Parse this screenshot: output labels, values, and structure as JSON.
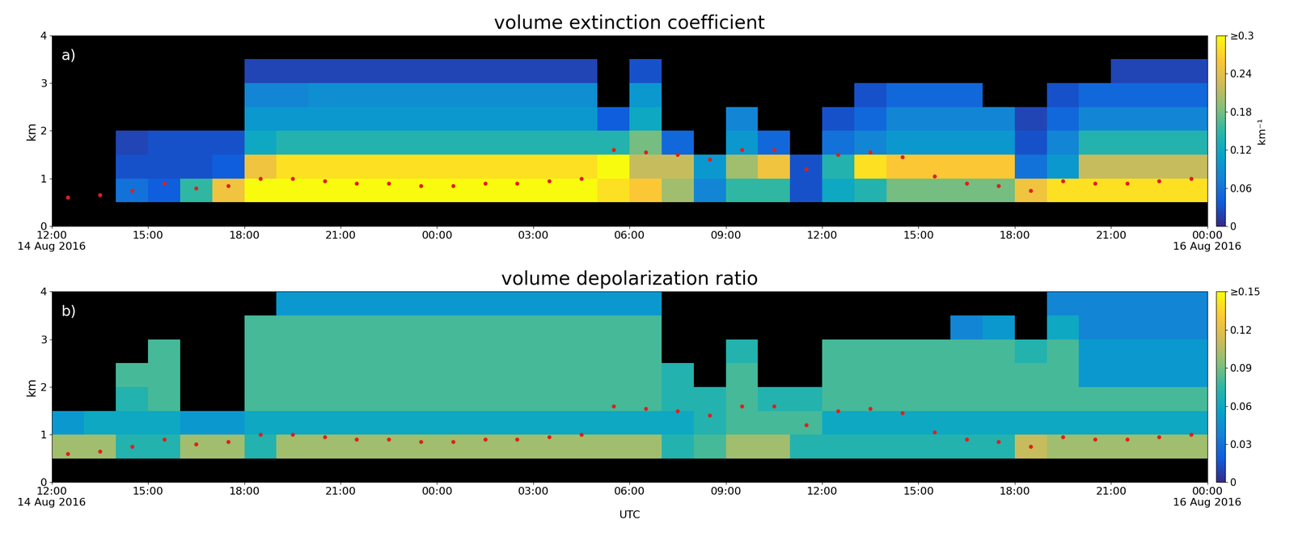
{
  "chart_data": [
    {
      "type": "heatmap",
      "title": "volume extinction coefficient",
      "panel_label": "a)",
      "y_label": "km",
      "x_label": null,
      "grid": false,
      "xlim": [
        0,
        36
      ],
      "ylim": [
        0,
        4
      ],
      "xticks": [
        {
          "value": 0,
          "label": "12:00\n14 Aug 2016"
        },
        {
          "value": 3,
          "label": "15:00"
        },
        {
          "value": 6,
          "label": "18:00"
        },
        {
          "value": 9,
          "label": "21:00"
        },
        {
          "value": 12,
          "label": "00:00"
        },
        {
          "value": 15,
          "label": "03:00"
        },
        {
          "value": 18,
          "label": "06:00"
        },
        {
          "value": 21,
          "label": "09:00"
        },
        {
          "value": 24,
          "label": "12:00"
        },
        {
          "value": 27,
          "label": "15:00"
        },
        {
          "value": 30,
          "label": "18:00"
        },
        {
          "value": 33,
          "label": "21:00"
        },
        {
          "value": 36,
          "label": "00:00\n16 Aug 2016"
        }
      ],
      "yticks": [
        0,
        1,
        2,
        3,
        4
      ],
      "x_edges": [
        0,
        1,
        2,
        3,
        4,
        5,
        6,
        7,
        8,
        9,
        10,
        11,
        12,
        13,
        14,
        15,
        16,
        17,
        18,
        19,
        20,
        21,
        22,
        23,
        24,
        25,
        26,
        27,
        28,
        29,
        30,
        31,
        32,
        33,
        34,
        35,
        36
      ],
      "y_edges": [
        0.5,
        1,
        1.5,
        2,
        2.5,
        3,
        3.5,
        4
      ],
      "cells": [
        [
          null,
          null,
          0.06,
          0.04,
          0.15,
          0.25,
          0.3,
          0.3,
          0.3,
          0.3,
          0.3,
          0.3,
          0.3,
          0.3,
          0.3,
          0.3,
          0.3,
          0.28,
          0.26,
          0.2,
          0.08,
          0.15,
          0.15,
          0.03,
          0.12,
          0.14,
          0.18,
          0.18,
          0.18,
          0.18,
          0.25,
          0.28,
          0.28,
          0.28,
          0.28,
          0.28
        ],
        [
          null,
          null,
          0.03,
          0.03,
          0.03,
          0.04,
          0.25,
          0.28,
          0.28,
          0.28,
          0.28,
          0.28,
          0.28,
          0.28,
          0.28,
          0.28,
          0.28,
          0.3,
          0.22,
          0.22,
          0.1,
          0.2,
          0.25,
          0.03,
          0.14,
          0.28,
          0.26,
          0.26,
          0.26,
          0.26,
          0.06,
          0.1,
          0.22,
          0.22,
          0.22,
          0.22
        ],
        [
          null,
          null,
          0.02,
          0.03,
          0.03,
          0.03,
          0.12,
          0.14,
          0.14,
          0.14,
          0.14,
          0.14,
          0.14,
          0.14,
          0.14,
          0.14,
          0.14,
          0.14,
          0.18,
          0.05,
          null,
          0.1,
          0.05,
          null,
          0.06,
          0.08,
          0.1,
          0.1,
          0.1,
          0.1,
          0.03,
          0.08,
          0.14,
          0.14,
          0.14,
          0.14
        ],
        [
          null,
          null,
          null,
          null,
          null,
          null,
          0.1,
          0.1,
          0.1,
          0.1,
          0.1,
          0.1,
          0.1,
          0.1,
          0.1,
          0.1,
          0.1,
          0.04,
          0.12,
          null,
          null,
          0.08,
          null,
          null,
          0.03,
          0.05,
          0.08,
          0.08,
          0.08,
          0.08,
          0.02,
          0.05,
          0.08,
          0.08,
          0.08,
          0.08
        ],
        [
          null,
          null,
          null,
          null,
          null,
          null,
          0.08,
          0.08,
          0.09,
          0.09,
          0.09,
          0.09,
          0.09,
          0.09,
          0.09,
          0.09,
          0.09,
          null,
          0.1,
          null,
          null,
          null,
          null,
          null,
          null,
          0.03,
          0.05,
          0.05,
          0.05,
          null,
          null,
          0.03,
          0.05,
          0.05,
          0.05,
          0.05
        ],
        [
          null,
          null,
          null,
          null,
          null,
          null,
          0.02,
          0.02,
          0.02,
          0.02,
          0.02,
          0.02,
          0.02,
          0.02,
          0.02,
          0.02,
          0.02,
          null,
          0.03,
          null,
          null,
          null,
          null,
          null,
          null,
          null,
          null,
          null,
          null,
          null,
          null,
          null,
          null,
          0.02,
          0.02,
          0.02
        ],
        [
          null,
          null,
          null,
          null,
          null,
          null,
          null,
          null,
          null,
          null,
          null,
          null,
          null,
          null,
          null,
          null,
          null,
          null,
          null,
          null,
          null,
          null,
          null,
          null,
          null,
          null,
          null,
          null,
          null,
          null,
          null,
          null,
          null,
          null,
          null,
          null
        ]
      ],
      "colorbar": {
        "range": [
          0,
          0.3
        ],
        "ticks": [
          0,
          0.06,
          0.12,
          0.18,
          0.24,
          {
            "value": 0.3,
            "label": "≥0.3"
          }
        ],
        "label": "km⁻¹"
      },
      "points": {
        "x": [
          0.5,
          1.5,
          2.5,
          3.5,
          4.5,
          5.5,
          6.5,
          7.5,
          8.5,
          9.5,
          10.5,
          11.5,
          12.5,
          13.5,
          14.5,
          15.5,
          16.5,
          17.5,
          18.5,
          19.5,
          20.5,
          21.5,
          22.5,
          23.5,
          24.5,
          25.5,
          26.5,
          27.5,
          28.5,
          29.5,
          30.5,
          31.5,
          32.5,
          33.5,
          34.5,
          35.5
        ],
        "values": [
          0.6,
          0.65,
          0.75,
          0.9,
          0.8,
          0.85,
          1.0,
          1.0,
          0.95,
          0.9,
          0.9,
          0.85,
          0.85,
          0.9,
          0.9,
          0.95,
          1.0,
          1.6,
          1.55,
          1.5,
          1.4,
          1.6,
          1.6,
          1.2,
          1.5,
          1.55,
          1.45,
          1.05,
          0.9,
          0.85,
          0.75,
          0.95,
          0.9,
          0.9,
          0.95,
          1.0
        ],
        "color": "#e0201b",
        "marker": "circle",
        "line_style": "none"
      }
    },
    {
      "type": "heatmap",
      "title": "volume depolarization ratio",
      "panel_label": "b)",
      "y_label": "km",
      "x_label": "UTC",
      "grid": false,
      "xlim": [
        0,
        36
      ],
      "ylim": [
        0,
        4
      ],
      "xticks": [
        {
          "value": 0,
          "label": "12:00\n14 Aug 2016"
        },
        {
          "value": 3,
          "label": "15:00"
        },
        {
          "value": 6,
          "label": "18:00"
        },
        {
          "value": 9,
          "label": "21:00"
        },
        {
          "value": 12,
          "label": "00:00"
        },
        {
          "value": 15,
          "label": "03:00"
        },
        {
          "value": 18,
          "label": "06:00"
        },
        {
          "value": 21,
          "label": "09:00"
        },
        {
          "value": 24,
          "label": "12:00"
        },
        {
          "value": 27,
          "label": "15:00"
        },
        {
          "value": 30,
          "label": "18:00"
        },
        {
          "value": 33,
          "label": "21:00"
        },
        {
          "value": 36,
          "label": "00:00\n16 Aug 2016"
        }
      ],
      "yticks": [
        0,
        1,
        2,
        3,
        4
      ],
      "x_edges": [
        0,
        1,
        2,
        3,
        4,
        5,
        6,
        7,
        8,
        9,
        10,
        11,
        12,
        13,
        14,
        15,
        16,
        17,
        18,
        19,
        20,
        21,
        22,
        23,
        24,
        25,
        26,
        27,
        28,
        29,
        30,
        31,
        32,
        33,
        34,
        35,
        36
      ],
      "y_edges": [
        0.5,
        1,
        1.5,
        2,
        2.5,
        3,
        3.5,
        4
      ],
      "cells": [
        [
          0.1,
          0.1,
          0.07,
          0.07,
          0.1,
          0.1,
          0.07,
          0.1,
          0.1,
          0.1,
          0.1,
          0.1,
          0.1,
          0.1,
          0.1,
          0.1,
          0.1,
          0.1,
          0.1,
          0.07,
          0.08,
          0.1,
          0.1,
          0.07,
          0.07,
          0.07,
          0.07,
          0.07,
          0.07,
          0.07,
          0.11,
          0.1,
          0.1,
          0.1,
          0.1,
          0.1
        ],
        [
          0.05,
          0.06,
          0.06,
          0.06,
          0.05,
          0.05,
          0.06,
          0.06,
          0.06,
          0.06,
          0.06,
          0.06,
          0.06,
          0.06,
          0.06,
          0.06,
          0.06,
          0.06,
          0.06,
          0.06,
          0.07,
          0.08,
          0.08,
          0.08,
          0.06,
          0.06,
          0.06,
          0.06,
          0.06,
          0.06,
          0.06,
          0.06,
          0.06,
          0.06,
          0.06,
          0.06
        ],
        [
          null,
          null,
          0.07,
          0.08,
          null,
          null,
          0.08,
          0.08,
          0.08,
          0.08,
          0.08,
          0.08,
          0.08,
          0.08,
          0.08,
          0.08,
          0.08,
          0.08,
          0.08,
          0.07,
          0.07,
          0.08,
          0.07,
          0.07,
          0.08,
          0.08,
          0.08,
          0.08,
          0.08,
          0.08,
          0.08,
          0.08,
          0.08,
          0.08,
          0.08,
          0.08
        ],
        [
          null,
          null,
          0.08,
          0.08,
          null,
          null,
          0.08,
          0.08,
          0.08,
          0.08,
          0.08,
          0.08,
          0.08,
          0.08,
          0.08,
          0.08,
          0.08,
          0.08,
          0.08,
          0.07,
          null,
          0.08,
          null,
          null,
          0.08,
          0.08,
          0.08,
          0.08,
          0.08,
          0.08,
          0.08,
          0.08,
          0.05,
          0.05,
          0.05,
          0.05
        ],
        [
          null,
          null,
          null,
          0.08,
          null,
          null,
          0.08,
          0.08,
          0.08,
          0.08,
          0.08,
          0.08,
          0.08,
          0.08,
          0.08,
          0.08,
          0.08,
          0.08,
          0.08,
          null,
          null,
          0.07,
          null,
          null,
          0.08,
          0.08,
          0.08,
          0.08,
          0.08,
          0.08,
          0.07,
          0.08,
          0.05,
          0.05,
          0.05,
          0.05
        ],
        [
          null,
          null,
          null,
          null,
          null,
          null,
          0.08,
          0.08,
          0.08,
          0.08,
          0.08,
          0.08,
          0.08,
          0.08,
          0.08,
          0.08,
          0.08,
          0.08,
          0.08,
          null,
          null,
          null,
          null,
          null,
          null,
          null,
          null,
          null,
          0.04,
          0.05,
          null,
          0.06,
          0.04,
          0.04,
          0.04,
          0.04
        ],
        [
          null,
          null,
          null,
          null,
          null,
          null,
          null,
          0.05,
          0.05,
          0.05,
          0.05,
          0.05,
          0.05,
          0.05,
          0.05,
          0.05,
          0.05,
          0.05,
          0.05,
          null,
          null,
          null,
          null,
          null,
          null,
          null,
          null,
          null,
          null,
          null,
          null,
          0.04,
          0.04,
          0.04,
          0.04,
          0.04
        ]
      ],
      "colorbar": {
        "range": [
          0,
          0.15
        ],
        "ticks": [
          0,
          0.03,
          0.06,
          0.09,
          0.12,
          {
            "value": 0.15,
            "label": "≥0.15"
          }
        ],
        "label": null
      },
      "points": {
        "x": [
          0.5,
          1.5,
          2.5,
          3.5,
          4.5,
          5.5,
          6.5,
          7.5,
          8.5,
          9.5,
          10.5,
          11.5,
          12.5,
          13.5,
          14.5,
          15.5,
          16.5,
          17.5,
          18.5,
          19.5,
          20.5,
          21.5,
          22.5,
          23.5,
          24.5,
          25.5,
          26.5,
          27.5,
          28.5,
          29.5,
          30.5,
          31.5,
          32.5,
          33.5,
          34.5,
          35.5
        ],
        "values": [
          0.6,
          0.65,
          0.75,
          0.9,
          0.8,
          0.85,
          1.0,
          1.0,
          0.95,
          0.9,
          0.9,
          0.85,
          0.85,
          0.9,
          0.9,
          0.95,
          1.0,
          1.6,
          1.55,
          1.5,
          1.4,
          1.6,
          1.6,
          1.2,
          1.5,
          1.55,
          1.45,
          1.05,
          0.9,
          0.85,
          0.75,
          0.95,
          0.9,
          0.9,
          0.95,
          1.0
        ],
        "color": "#e0201b",
        "marker": "circle",
        "line_style": "none"
      }
    }
  ]
}
